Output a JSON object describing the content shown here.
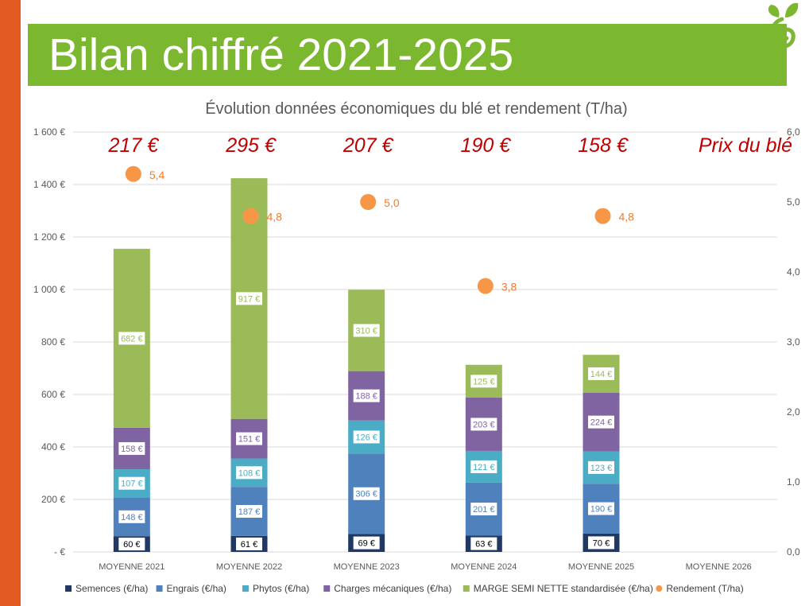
{
  "slide": {
    "title": "Bilan chiffré 2021-2025"
  },
  "colors": {
    "left_bar": "#e35a23",
    "title_band": "#7cb82f",
    "logo_green": "#7cb82f",
    "logo_orange": "#e35a23"
  },
  "chart_data": {
    "type": "bar",
    "stacked": true,
    "title": "Évolution données économiques du blé et rendement (T/ha)",
    "categories": [
      "MOYENNE 2021",
      "MOYENNE 2022",
      "MOYENNE 2023",
      "MOYENNE 2024",
      "MOYENNE 2025",
      "MOYENNE 2026"
    ],
    "y_left": {
      "range": [
        0,
        1600
      ],
      "ticks": [
        0,
        200,
        400,
        600,
        800,
        1000,
        1200,
        1400,
        1600
      ],
      "tick_labels": [
        "-  €",
        "200 €",
        "400 €",
        "600 €",
        "800 €",
        "1 000 €",
        "1 200 €",
        "1 400 €",
        "1 600 €"
      ]
    },
    "y_right": {
      "range": [
        0,
        6
      ],
      "ticks": [
        0,
        1,
        2,
        3,
        4,
        5,
        6
      ],
      "tick_labels": [
        "0,0",
        "1,0",
        "2,0",
        "3,0",
        "4,0",
        "5,0",
        "6,0"
      ]
    },
    "grid": true,
    "series": [
      {
        "name": "Semences (€/ha)",
        "color": "#203864",
        "values": [
          60,
          61,
          69,
          63,
          70,
          null
        ],
        "labels": [
          "60 €",
          "61 €",
          "69 €",
          "63 €",
          "70 €",
          ""
        ]
      },
      {
        "name": "Engrais (€/ha)",
        "color": "#4f81bd",
        "values": [
          148,
          187,
          306,
          201,
          190,
          null
        ],
        "labels": [
          "148 €",
          "187 €",
          "306 €",
          "201 €",
          "190 €",
          ""
        ]
      },
      {
        "name": "Phytos (€/ha)",
        "color": "#4bacc6",
        "values": [
          107,
          108,
          126,
          121,
          123,
          null
        ],
        "labels": [
          "107 €",
          "108 €",
          "126 €",
          "121 €",
          "123 €",
          ""
        ]
      },
      {
        "name": "Charges mécaniques (€/ha)",
        "color": "#8064a2",
        "values": [
          158,
          151,
          188,
          203,
          224,
          null
        ],
        "labels": [
          "158 €",
          "151 €",
          "188 €",
          "203 €",
          "224 €",
          ""
        ]
      },
      {
        "name": "MARGE SEMI NETTE standardisée (€/ha)",
        "color": "#9bbb59",
        "values": [
          682,
          917,
          310,
          125,
          144,
          null
        ],
        "labels": [
          "682 €",
          "917 €",
          "310 €",
          "125 €",
          "144 €",
          ""
        ]
      }
    ],
    "line_series": {
      "name": "Rendement (T/ha)",
      "axis": "right",
      "color": "#f79646",
      "label_color": "#ed7d31",
      "values": [
        5.4,
        4.8,
        5.0,
        3.8,
        4.8,
        null
      ],
      "labels": [
        "5,4",
        "4,8",
        "5,0",
        "3,8",
        "4,8",
        ""
      ]
    },
    "annotations": {
      "prices": [
        "217 €",
        "295 €",
        "207 €",
        "190 €",
        "158 €"
      ],
      "price_header": "Prix du blé"
    },
    "legend_position": "bottom"
  }
}
